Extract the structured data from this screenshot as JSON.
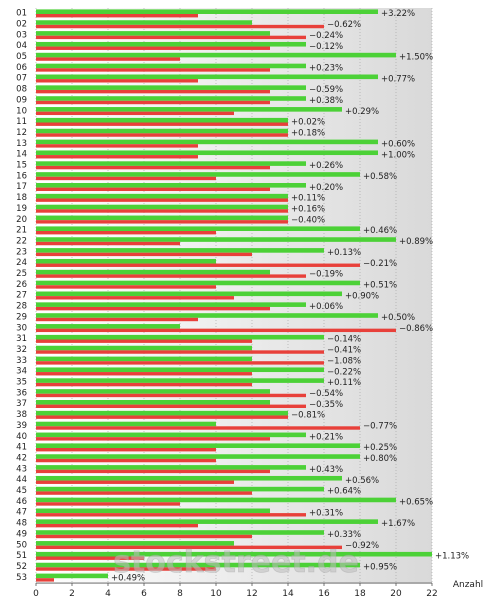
{
  "chart_data": {
    "type": "bar",
    "orientation": "horizontal",
    "xlabel": "Anzahl",
    "xlim": [
      0,
      22
    ],
    "xticks": [
      0,
      2,
      4,
      6,
      8,
      10,
      12,
      14,
      16,
      18,
      20,
      22
    ],
    "grid": true,
    "watermark": "stockstreet.de",
    "colors": {
      "green": "#4cd137",
      "red": "#e8403a",
      "grid": "#9e9e9e"
    },
    "categories": [
      "01",
      "02",
      "03",
      "04",
      "05",
      "06",
      "07",
      "08",
      "09",
      "10",
      "11",
      "12",
      "13",
      "14",
      "15",
      "16",
      "17",
      "18",
      "19",
      "20",
      "21",
      "22",
      "23",
      "24",
      "25",
      "26",
      "27",
      "28",
      "29",
      "30",
      "31",
      "32",
      "33",
      "34",
      "35",
      "36",
      "37",
      "38",
      "39",
      "40",
      "41",
      "42",
      "43",
      "44",
      "45",
      "46",
      "47",
      "48",
      "49",
      "50",
      "51",
      "52",
      "53"
    ],
    "series": [
      {
        "color": "green",
        "values": [
          19,
          12,
          13,
          15,
          20,
          15,
          19,
          15,
          15,
          17,
          14,
          14,
          19,
          19,
          15,
          18,
          15,
          14,
          14,
          14,
          18,
          20,
          16,
          10,
          13,
          18,
          17,
          15,
          19,
          8,
          16,
          12,
          12,
          16,
          16,
          13,
          13,
          14,
          10,
          15,
          18,
          18,
          15,
          17,
          16,
          20,
          13,
          19,
          16,
          11,
          22,
          18,
          4
        ]
      },
      {
        "color": "red",
        "values": [
          9,
          16,
          15,
          13,
          8,
          13,
          9,
          13,
          13,
          11,
          14,
          14,
          9,
          9,
          13,
          10,
          13,
          14,
          14,
          14,
          10,
          8,
          12,
          18,
          15,
          10,
          11,
          13,
          9,
          20,
          12,
          16,
          16,
          12,
          12,
          15,
          15,
          14,
          18,
          13,
          10,
          10,
          13,
          11,
          12,
          8,
          15,
          9,
          12,
          17,
          6,
          10,
          1
        ]
      }
    ],
    "annotations": [
      "+3.22%",
      "−0.62%",
      "−0.24%",
      "−0.12%",
      "+1.50%",
      "+0.23%",
      "+0.77%",
      "−0.59%",
      "+0.38%",
      "+0.29%",
      "+0.02%",
      "+0.18%",
      "+0.60%",
      "+1.00%",
      "+0.26%",
      "+0.58%",
      "+0.20%",
      "+0.11%",
      "+0.16%",
      "−0.40%",
      "+0.46%",
      "+0.89%",
      "+0.13%",
      "−0.21%",
      "−0.19%",
      "+0.51%",
      "+0.90%",
      "+0.06%",
      "+0.50%",
      "−0.86%",
      "−0.14%",
      "−0.41%",
      "−1.08%",
      "−0.22%",
      "+0.11%",
      "−0.54%",
      "−0.35%",
      "−0.81%",
      "−0.77%",
      "+0.21%",
      "+0.25%",
      "+0.80%",
      "+0.43%",
      "+0.56%",
      "+0.64%",
      "+0.65%",
      "+0.31%",
      "+1.67%",
      "+0.33%",
      "−0.92%",
      "+1.13%",
      "+0.95%",
      "+0.49%"
    ]
  }
}
